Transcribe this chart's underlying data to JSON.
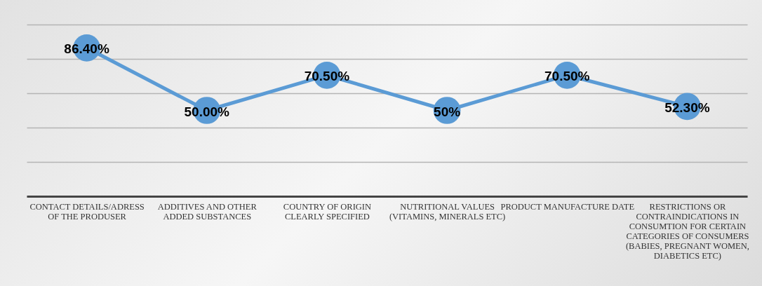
{
  "chart_data": {
    "type": "line",
    "categories": [
      "CONTACT DETAILS/ADRESS OF THE PRODUSER",
      "ADDITIVES AND OTHER ADDED SUBSTANCES",
      "COUNTRY OF ORIGIN CLEARLY SPECIFIED",
      "NUTRITIONAL VALUES (VITAMINS, MINERALS ETC)",
      "PRODUCT MANUFACTURE DATE",
      "RESTRICTIONS OR CONTRAINDICATIONS IN CONSUMTION FOR CERTAIN CATEGORIES OF CONSUMERS (BABIES, PREGNANT WOMEN, DIABETICS ETC)"
    ],
    "series": [
      {
        "color": "#5b9bd5",
        "values": [
          86.4,
          50,
          70.5,
          50,
          70.5,
          52.3
        ],
        "value_labels": [
          "86.40%",
          "50.00%",
          "70.50%",
          "50%",
          "70.50%",
          "52.30%"
        ]
      }
    ],
    "ylim": [
      0,
      100
    ],
    "yticks": [
      {
        "value": 0,
        "label": null
      },
      {
        "value": 20,
        "label": null
      },
      {
        "value": 40,
        "label": null
      },
      {
        "value": 60,
        "label": null
      },
      {
        "value": 80,
        "label": null
      },
      {
        "value": 100,
        "label": null
      }
    ],
    "tick_labels": "x",
    "grid": "y",
    "marker": "circle",
    "line_style": "solid",
    "legend": false
  }
}
